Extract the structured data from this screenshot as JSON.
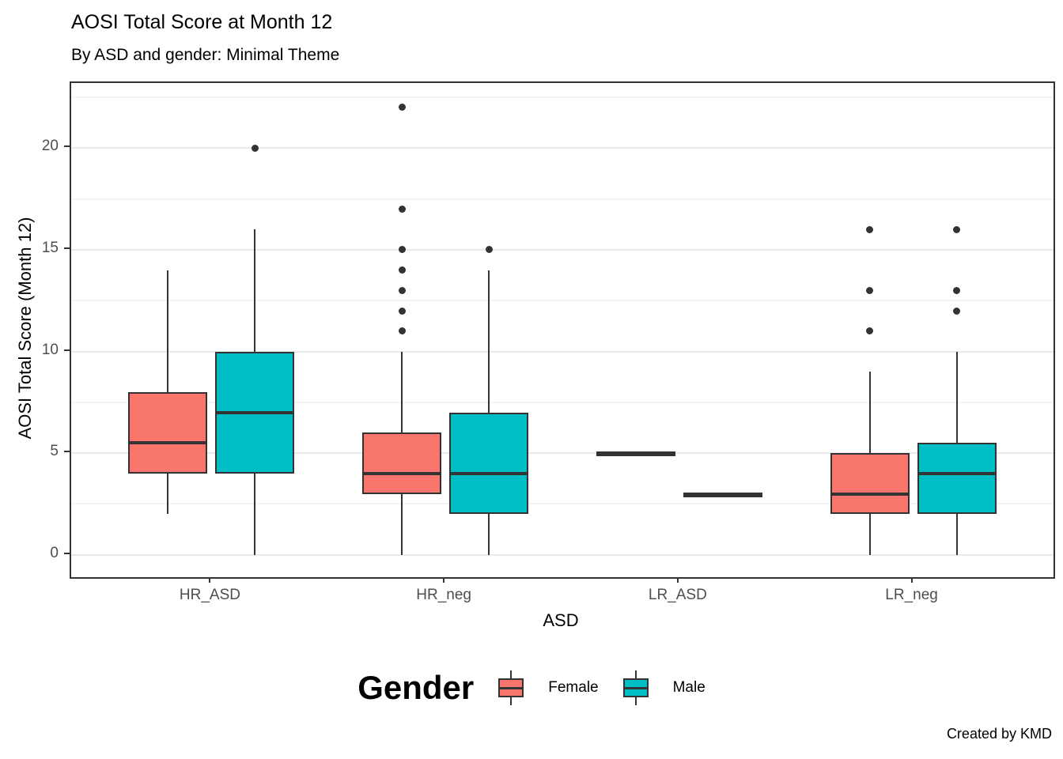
{
  "chart_data": {
    "type": "grouped_boxplot",
    "title": "AOSI Total Score at Month 12",
    "subtitle": "By ASD and gender: Minimal Theme",
    "xlabel": "ASD",
    "ylabel": "AOSI Total Score (Month 12)",
    "caption": "Created by KMD",
    "categories": [
      "HR_ASD",
      "HR_neg",
      "LR_ASD",
      "LR_neg"
    ],
    "yticks": [
      0,
      5,
      10,
      15,
      20
    ],
    "yticks_minor": [
      2.5,
      7.5,
      12.5,
      17.5,
      22.5
    ],
    "ylim": [
      -1.1,
      23.2
    ],
    "grid": true,
    "legend": {
      "title": "Gender",
      "position": "bottom"
    },
    "series": [
      {
        "name": "Female",
        "color": "#F8766D",
        "boxes": [
          {
            "category": "HR_ASD",
            "whisker_low": 2,
            "q1": 4,
            "median": 5.5,
            "q3": 8,
            "whisker_high": 14,
            "outliers": []
          },
          {
            "category": "HR_neg",
            "whisker_low": 0,
            "q1": 3,
            "median": 4,
            "q3": 6,
            "whisker_high": 10,
            "outliers": [
              11,
              12,
              13,
              14,
              15,
              17,
              22
            ]
          },
          {
            "category": "LR_ASD",
            "whisker_low": 5,
            "q1": 5,
            "median": 5,
            "q3": 5,
            "whisker_high": 5,
            "outliers": []
          },
          {
            "category": "LR_neg",
            "whisker_low": 0,
            "q1": 2,
            "median": 3,
            "q3": 5,
            "whisker_high": 9,
            "outliers": [
              11,
              13,
              16
            ]
          }
        ]
      },
      {
        "name": "Male",
        "color": "#00BFC4",
        "boxes": [
          {
            "category": "HR_ASD",
            "whisker_low": 0,
            "q1": 4,
            "median": 7,
            "q3": 10,
            "whisker_high": 16,
            "outliers": [
              20
            ]
          },
          {
            "category": "HR_neg",
            "whisker_low": 0,
            "q1": 2,
            "median": 4,
            "q3": 7,
            "whisker_high": 14,
            "outliers": [
              15
            ]
          },
          {
            "category": "LR_ASD",
            "whisker_low": 3,
            "q1": 3,
            "median": 3,
            "q3": 3,
            "whisker_high": 3,
            "outliers": []
          },
          {
            "category": "LR_neg",
            "whisker_low": 0,
            "q1": 2,
            "median": 4,
            "q3": 5.5,
            "whisker_high": 10,
            "outliers": [
              12,
              13,
              16
            ]
          }
        ]
      }
    ],
    "styles": {
      "grid_major": "#E9E9E9",
      "grid_minor": "#F4F4F4",
      "box_border": "#333333",
      "panel_border": "#333333",
      "tick_label_color": "#4d4d4d"
    }
  }
}
